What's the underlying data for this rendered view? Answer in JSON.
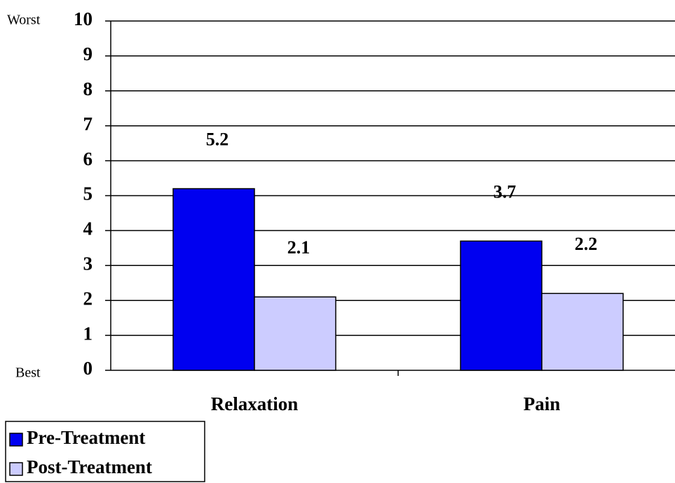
{
  "chart_data": {
    "type": "bar",
    "categories": [
      "Relaxation",
      "Pain"
    ],
    "series": [
      {
        "name": "Pre-Treatment",
        "color": "#0000f0",
        "values": [
          5.2,
          3.7
        ]
      },
      {
        "name": "Post-Treatment",
        "color": "#ccccff",
        "values": [
          2.1,
          2.2
        ]
      }
    ],
    "ylim": [
      0,
      10
    ],
    "yticks": [
      0,
      1,
      2,
      3,
      4,
      5,
      6,
      7,
      8,
      9,
      10
    ],
    "y_top_label": "Worst",
    "y_bottom_label": "Best",
    "grid": true,
    "legend": "bottom-left"
  }
}
